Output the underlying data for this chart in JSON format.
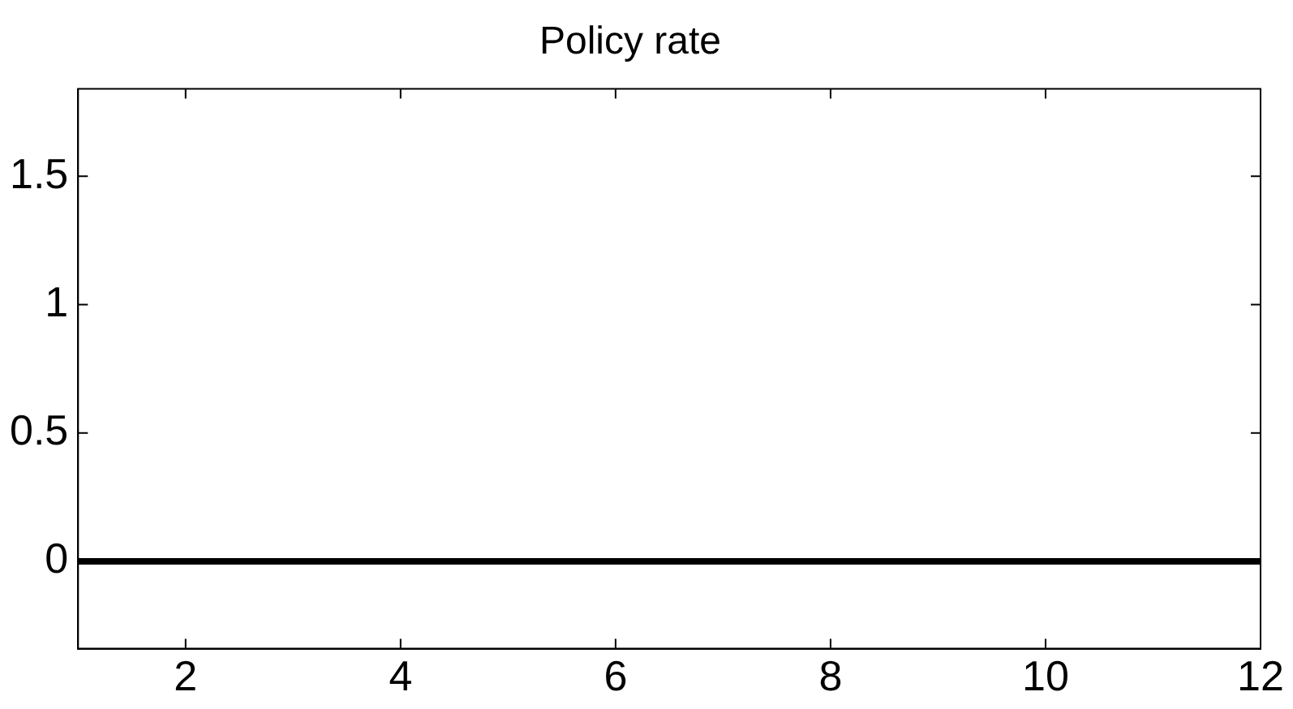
{
  "chart_data": {
    "type": "line",
    "title": "Policy rate",
    "x": [
      1,
      12
    ],
    "series": [
      {
        "color": "#000000",
        "values": [
          0,
          0
        ]
      }
    ],
    "xlim": [
      1,
      12
    ],
    "xticks": [
      2,
      4,
      6,
      8,
      10,
      12
    ],
    "ylim": [
      -0.34,
      1.84
    ],
    "yticks": [
      0,
      0.5,
      1,
      1.5
    ],
    "grid": false,
    "legend": false,
    "marker": "none",
    "line_style": "solid"
  }
}
